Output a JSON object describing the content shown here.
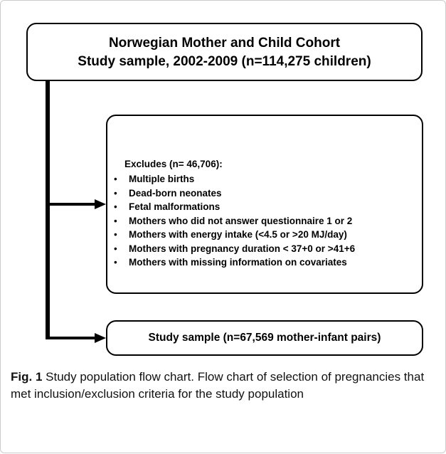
{
  "top_box": {
    "line1": "Norwegian Mother and Child Cohort",
    "line2": "Study sample, 2002-2009 (n=114,275 children)"
  },
  "exclusion_box": {
    "heading": "Excludes (n= 46,706):",
    "items": [
      "Multiple births",
      "Dead-born neonates",
      "Fetal malformations",
      "Mothers who did not answer questionnaire 1 or 2",
      "Mothers with energy intake (<4.5 or >20 MJ/day)",
      "Mothers with pregnancy duration < 37+0 or >41+6",
      "Mothers with missing information on covariates"
    ]
  },
  "bottom_box": {
    "label": "Study sample (n=67,569 mother-infant pairs)"
  },
  "caption": {
    "label": "Fig. 1",
    "text": "Study population flow chart. Flow chart of selection of pregnancies that met inclusion/exclusion criteria for the study population"
  }
}
